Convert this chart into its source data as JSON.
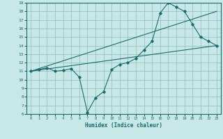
{
  "bg_color": "#c8e8e8",
  "grid_color": "#8bbcbc",
  "line_color": "#1a6b6b",
  "xlabel": "Humidex (Indice chaleur)",
  "xlim": [
    -0.5,
    23.5
  ],
  "ylim": [
    6,
    19
  ],
  "yticks": [
    6,
    7,
    8,
    9,
    10,
    11,
    12,
    13,
    14,
    15,
    16,
    17,
    18,
    19
  ],
  "xticks": [
    0,
    1,
    2,
    3,
    4,
    5,
    6,
    7,
    8,
    9,
    10,
    11,
    12,
    13,
    14,
    15,
    16,
    17,
    18,
    19,
    20,
    21,
    22,
    23
  ],
  "line1_x": [
    0,
    1,
    2,
    3,
    4,
    5,
    6,
    7,
    8,
    9,
    10,
    11,
    12,
    13,
    14,
    15,
    16,
    17,
    18,
    19,
    20,
    21,
    22,
    23
  ],
  "line1_y": [
    11.0,
    11.2,
    11.4,
    11.0,
    11.1,
    11.3,
    10.3,
    6.2,
    7.9,
    8.6,
    11.2,
    11.8,
    12.0,
    12.5,
    13.5,
    14.5,
    17.8,
    19.0,
    18.5,
    18.0,
    16.5,
    15.0,
    14.5,
    14.0
  ],
  "line2_x": [
    0,
    23
  ],
  "line2_y": [
    11.0,
    18.0
  ],
  "line3_x": [
    0,
    23
  ],
  "line3_y": [
    11.0,
    14.0
  ],
  "figsize": [
    3.2,
    2.0
  ],
  "dpi": 100
}
